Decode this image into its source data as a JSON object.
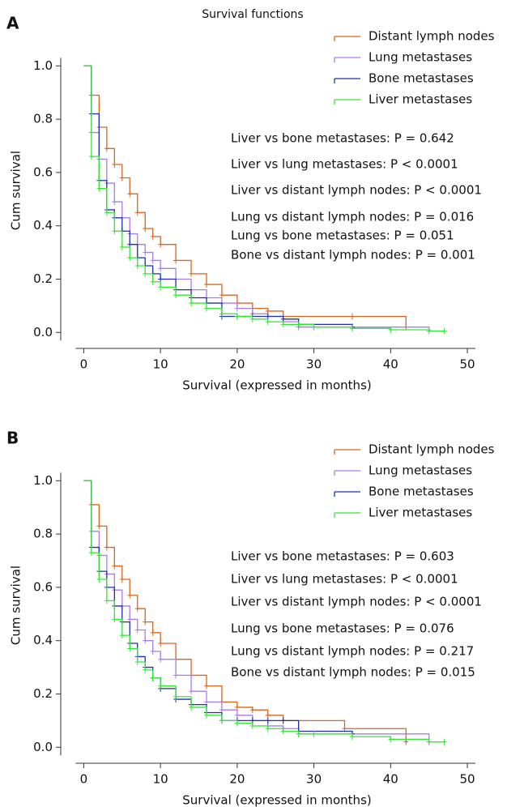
{
  "chart_data": [
    {
      "type": "step",
      "panel_label": "A",
      "title": "Survival functions",
      "x_label": "Survival (expressed in months)",
      "y_label": "Cum survival",
      "xlim": [
        -3,
        52
      ],
      "ylim": [
        -0.06,
        1.08
      ],
      "xticks": [
        0,
        10,
        20,
        30,
        40,
        50
      ],
      "yticks": [
        {
          "value": 0,
          "label": "0.0"
        },
        0.2,
        0.4,
        0.6,
        0.8,
        {
          "value": 1,
          "label": "1.0"
        }
      ],
      "legend": "upper right",
      "series": [
        {
          "name": "Distant lymph nodes",
          "color": "#d9661f",
          "x": [
            0,
            1,
            2,
            3,
            4,
            5,
            6,
            7,
            8,
            9,
            10,
            12,
            14,
            16,
            18,
            20,
            22,
            24,
            26,
            35,
            42
          ],
          "values": [
            1,
            0.89,
            0.77,
            0.69,
            0.63,
            0.58,
            0.52,
            0.45,
            0.39,
            0.36,
            0.33,
            0.27,
            0.22,
            0.18,
            0.14,
            0.11,
            0.09,
            0.08,
            0.06,
            0.06,
            0.02
          ]
        },
        {
          "name": "Lung metastases",
          "color": "#a77cf0",
          "x": [
            0,
            1,
            2,
            3,
            4,
            5,
            6,
            7,
            8,
            9,
            10,
            12,
            14,
            16,
            18,
            20,
            22,
            24,
            26,
            28,
            35,
            45
          ],
          "values": [
            1,
            0.75,
            0.65,
            0.56,
            0.49,
            0.43,
            0.37,
            0.33,
            0.3,
            0.27,
            0.24,
            0.2,
            0.16,
            0.13,
            0.11,
            0.09,
            0.07,
            0.06,
            0.04,
            0.02,
            0.02,
            0.01
          ]
        },
        {
          "name": "Bone metastases",
          "color": "#1f2fb5",
          "x": [
            0,
            1,
            2,
            3,
            4,
            5,
            6,
            7,
            8,
            9,
            10,
            12,
            14,
            16,
            18,
            20,
            22,
            24,
            26,
            28,
            35
          ],
          "values": [
            1,
            0.82,
            0.57,
            0.46,
            0.43,
            0.38,
            0.33,
            0.28,
            0.25,
            0.22,
            0.2,
            0.16,
            0.13,
            0.11,
            0.06,
            0.06,
            0.06,
            0.06,
            0.05,
            0.03,
            0.02
          ]
        },
        {
          "name": "Liver metastases",
          "color": "#34e634",
          "x": [
            0,
            1,
            2,
            3,
            4,
            5,
            6,
            7,
            8,
            9,
            10,
            12,
            14,
            16,
            18,
            20,
            22,
            24,
            26,
            28,
            30,
            35,
            40,
            45,
            47
          ],
          "values": [
            1,
            0.66,
            0.54,
            0.45,
            0.38,
            0.32,
            0.28,
            0.25,
            0.22,
            0.19,
            0.17,
            0.14,
            0.11,
            0.09,
            0.07,
            0.06,
            0.05,
            0.04,
            0.03,
            0.03,
            0.02,
            0.015,
            0.01,
            0.005,
            0.005
          ]
        }
      ],
      "annotations": [
        "Liver vs bone metastases: P = 0.642",
        "Liver vs lung metastases: P < 0.0001",
        "Liver vs distant lymph nodes: P < 0.0001",
        "Lung vs distant lymph nodes: P = 0.016",
        "Lung vs bone metastases: P = 0.051",
        "Bone vs distant lymph nodes: P = 0.001"
      ]
    },
    {
      "type": "step",
      "panel_label": "B",
      "x_label": "Survival (expressed in months)",
      "y_label": "Cum survival",
      "xlim": [
        -3,
        52
      ],
      "ylim": [
        -0.06,
        1.08
      ],
      "xticks": [
        0,
        10,
        20,
        30,
        40,
        50
      ],
      "yticks": [
        {
          "value": 0,
          "label": "0.0"
        },
        0.2,
        0.4,
        0.6,
        0.8,
        {
          "value": 1,
          "label": "1.0"
        }
      ],
      "legend": "upper right",
      "series": [
        {
          "name": "Distant lymph nodes",
          "color": "#d9661f",
          "x": [
            0,
            1,
            2,
            3,
            4,
            5,
            6,
            7,
            8,
            9,
            10,
            12,
            14,
            16,
            18,
            20,
            22,
            24,
            26,
            34,
            42
          ],
          "values": [
            1,
            0.91,
            0.83,
            0.75,
            0.68,
            0.63,
            0.57,
            0.52,
            0.47,
            0.43,
            0.39,
            0.33,
            0.27,
            0.23,
            0.17,
            0.15,
            0.14,
            0.12,
            0.1,
            0.07,
            0.02
          ]
        },
        {
          "name": "Lung metastases",
          "color": "#a77cf0",
          "x": [
            0,
            1,
            2,
            3,
            4,
            5,
            6,
            7,
            8,
            9,
            10,
            12,
            14,
            16,
            18,
            20,
            22,
            24,
            26,
            28,
            35,
            45
          ],
          "values": [
            1,
            0.81,
            0.72,
            0.65,
            0.59,
            0.53,
            0.48,
            0.44,
            0.4,
            0.36,
            0.33,
            0.27,
            0.21,
            0.17,
            0.14,
            0.12,
            0.1,
            0.08,
            0.07,
            0.05,
            0.05,
            0.02
          ]
        },
        {
          "name": "Bone metastases",
          "color": "#1f2fb5",
          "x": [
            0,
            1,
            2,
            3,
            4,
            5,
            6,
            7,
            8,
            9,
            10,
            12,
            14,
            16,
            18,
            20,
            22,
            24,
            26,
            28,
            35
          ],
          "values": [
            1,
            0.75,
            0.66,
            0.6,
            0.53,
            0.47,
            0.39,
            0.34,
            0.3,
            0.26,
            0.22,
            0.18,
            0.16,
            0.13,
            0.1,
            0.1,
            0.1,
            0.1,
            0.1,
            0.06,
            0.05
          ]
        },
        {
          "name": "Liver metastases",
          "color": "#34e634",
          "x": [
            0,
            1,
            2,
            3,
            4,
            5,
            6,
            7,
            8,
            9,
            10,
            12,
            14,
            16,
            18,
            20,
            22,
            24,
            26,
            28,
            30,
            35,
            40,
            45,
            47
          ],
          "values": [
            1,
            0.73,
            0.63,
            0.55,
            0.48,
            0.42,
            0.37,
            0.32,
            0.29,
            0.26,
            0.23,
            0.19,
            0.15,
            0.12,
            0.1,
            0.09,
            0.08,
            0.07,
            0.06,
            0.05,
            0.05,
            0.04,
            0.03,
            0.02,
            0.02
          ]
        }
      ],
      "annotations": [
        "Liver vs bone metastases: P = 0.603",
        "Liver vs lung metastases: P < 0.0001",
        "Liver vs distant lymph nodes: P < 0.0001",
        "Lung vs bone metastases: P = 0.076",
        "Lung vs distant lymph nodes: P = 0.217",
        "Bone vs distant lymph nodes: P = 0.015"
      ]
    }
  ]
}
